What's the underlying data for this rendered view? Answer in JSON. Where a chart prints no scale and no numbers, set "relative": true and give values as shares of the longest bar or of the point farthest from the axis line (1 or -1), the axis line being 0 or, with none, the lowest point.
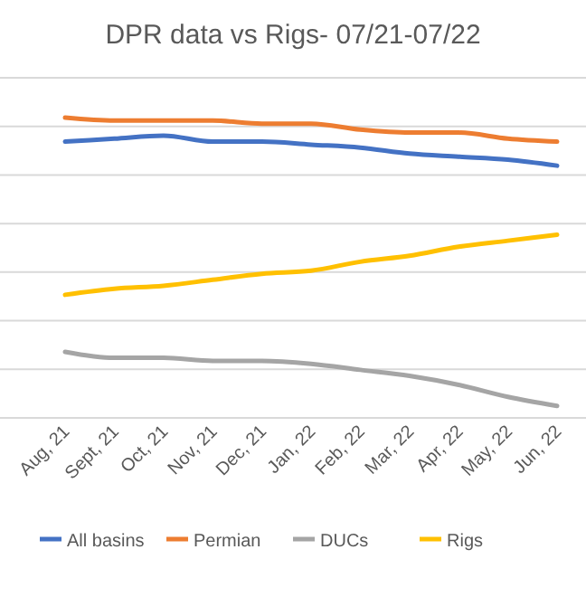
{
  "chart_data": {
    "type": "line",
    "title": "DPR data vs Rigs- 07/21-07/22",
    "relative": true,
    "grid": true,
    "legend": "bottom",
    "marker": "none",
    "line_style": "solid",
    "categories": [
      "Aug, 21",
      "Sept, 21",
      "Oct, 21",
      "Nov, 21",
      "Dec, 21",
      "Jan, 22",
      "Feb, 22",
      "Mar, 22",
      "Apr, 22",
      "May, 22",
      "Jun, 22"
    ],
    "series": [
      {
        "name": "All basins",
        "color": "#4472c4",
        "values": [
          0.92,
          0.93,
          0.94,
          0.92,
          0.92,
          0.91,
          0.9,
          0.88,
          0.87,
          0.86,
          0.84
        ]
      },
      {
        "name": "Permian",
        "color": "#ed7d31",
        "values": [
          1,
          0.99,
          0.99,
          0.99,
          0.98,
          0.98,
          0.96,
          0.95,
          0.95,
          0.93,
          0.92
        ]
      },
      {
        "name": "DUCs",
        "color": "#a5a5a5",
        "values": [
          0.22,
          0.2,
          0.2,
          0.19,
          0.19,
          0.18,
          0.16,
          0.14,
          0.11,
          0.07,
          0.04
        ]
      },
      {
        "name": "Rigs",
        "color": "#ffc000",
        "values": [
          0.41,
          0.43,
          0.44,
          0.46,
          0.48,
          0.49,
          0.52,
          0.54,
          0.57,
          0.59,
          0.61
        ]
      }
    ]
  }
}
